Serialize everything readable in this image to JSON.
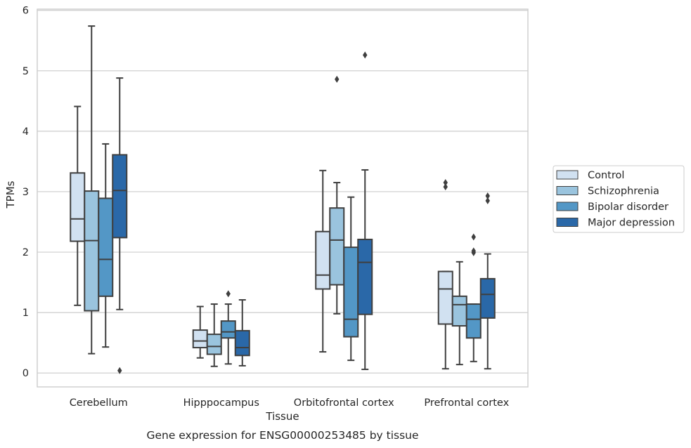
{
  "chart_data": {
    "type": "boxplot",
    "title": "",
    "caption": "Gene expression for ENSG00000253485 by tissue",
    "xlabel": "Tissue",
    "ylabel": "TPMs",
    "ylim": [
      -0.23,
      6.02
    ],
    "yticks": [
      0,
      1,
      2,
      3,
      4,
      5,
      6
    ],
    "grid": "horizontal",
    "legend_position": "right",
    "categories": [
      "Cerebellum",
      "Hipppocampus",
      "Orbitofrontal cortex",
      "Prefrontal cortex"
    ],
    "series": [
      {
        "name": "Control",
        "color": "#d1e1f1",
        "boxes": [
          {
            "whisker_low": 1.12,
            "q1": 2.18,
            "median": 2.55,
            "q3": 3.31,
            "whisker_high": 4.41,
            "outliers": []
          },
          {
            "whisker_low": 0.25,
            "q1": 0.42,
            "median": 0.53,
            "q3": 0.71,
            "whisker_high": 1.1,
            "outliers": []
          },
          {
            "whisker_low": 0.35,
            "q1": 1.39,
            "median": 1.62,
            "q3": 2.34,
            "whisker_high": 3.35,
            "outliers": []
          },
          {
            "whisker_low": 0.07,
            "q1": 0.81,
            "median": 1.39,
            "q3": 1.68,
            "whisker_high": 1.68,
            "outliers": [
              3.08,
              3.15
            ]
          }
        ]
      },
      {
        "name": "Schizophrenia",
        "color": "#9ac4de",
        "boxes": [
          {
            "whisker_low": 0.32,
            "q1": 1.03,
            "median": 2.19,
            "q3": 3.01,
            "whisker_high": 5.74,
            "outliers": []
          },
          {
            "whisker_low": 0.11,
            "q1": 0.31,
            "median": 0.44,
            "q3": 0.64,
            "whisker_high": 1.14,
            "outliers": []
          },
          {
            "whisker_low": 0.98,
            "q1": 1.46,
            "median": 2.2,
            "q3": 2.73,
            "whisker_high": 3.15,
            "outliers": [
              4.86
            ]
          },
          {
            "whisker_low": 0.14,
            "q1": 0.78,
            "median": 1.13,
            "q3": 1.27,
            "whisker_high": 1.84,
            "outliers": []
          }
        ]
      },
      {
        "name": "Bipolar disorder",
        "color": "#5397c6",
        "boxes": [
          {
            "whisker_low": 0.43,
            "q1": 1.27,
            "median": 1.88,
            "q3": 2.89,
            "whisker_high": 3.79,
            "outliers": []
          },
          {
            "whisker_low": 0.15,
            "q1": 0.58,
            "median": 0.68,
            "q3": 0.86,
            "whisker_high": 1.14,
            "outliers": [
              1.31
            ]
          },
          {
            "whisker_low": 0.21,
            "q1": 0.6,
            "median": 0.89,
            "q3": 2.08,
            "whisker_high": 2.91,
            "outliers": []
          },
          {
            "whisker_low": 0.19,
            "q1": 0.58,
            "median": 0.89,
            "q3": 1.14,
            "whisker_high": 1.14,
            "outliers": [
              1.99,
              2.02,
              2.25
            ]
          }
        ]
      },
      {
        "name": "Major depression",
        "color": "#2a68a8",
        "boxes": [
          {
            "whisker_low": 1.05,
            "q1": 2.24,
            "median": 3.02,
            "q3": 3.61,
            "whisker_high": 4.88,
            "outliers": [
              0.04
            ]
          },
          {
            "whisker_low": 0.12,
            "q1": 0.29,
            "median": 0.42,
            "q3": 0.7,
            "whisker_high": 1.21,
            "outliers": []
          },
          {
            "whisker_low": 0.06,
            "q1": 0.97,
            "median": 1.83,
            "q3": 2.21,
            "whisker_high": 3.36,
            "outliers": [
              5.26
            ]
          },
          {
            "whisker_low": 0.07,
            "q1": 0.91,
            "median": 1.3,
            "q3": 1.56,
            "whisker_high": 1.97,
            "outliers": [
              2.85,
              2.93
            ]
          }
        ]
      }
    ]
  }
}
